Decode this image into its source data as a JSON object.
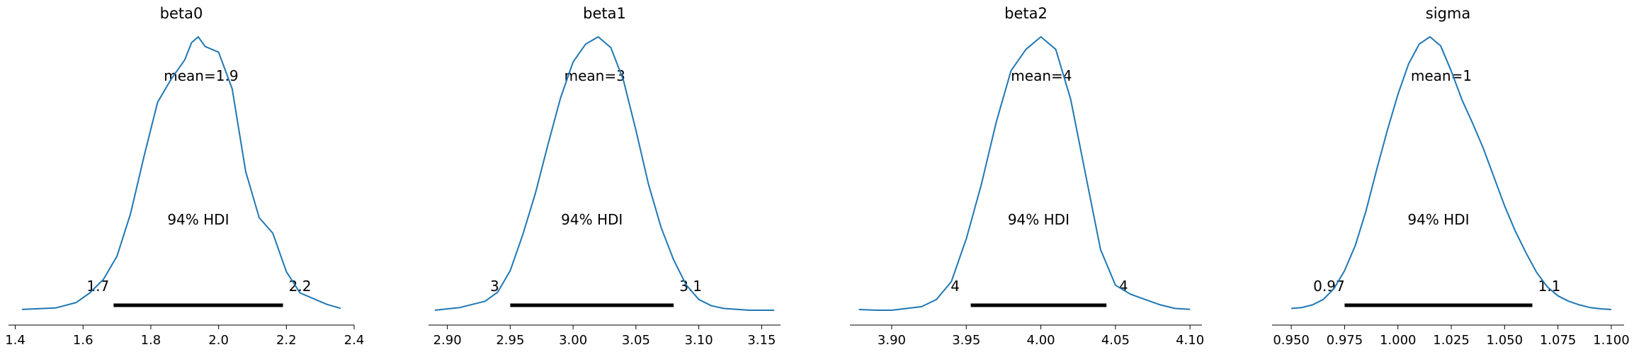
{
  "colors": {
    "line": "#1f77b4",
    "hdi_bar": "#000000",
    "axis": "#000000"
  },
  "chart_data": [
    {
      "type": "line",
      "title": "beta0",
      "mean_label": "mean=1.9",
      "hdi_label": "94% HDI",
      "hdi": [
        1.69,
        2.19
      ],
      "hdi_labels": [
        "1.7",
        "2.2"
      ],
      "xlim": [
        1.38,
        2.4
      ],
      "ticks": [
        1.4,
        1.6,
        1.8,
        2.0,
        2.2,
        2.4
      ],
      "tick_labels": [
        "1.4",
        "1.6",
        "1.8",
        "2.0",
        "2.2",
        "2.4"
      ],
      "density": {
        "x": [
          1.42,
          1.52,
          1.58,
          1.62,
          1.66,
          1.7,
          1.74,
          1.78,
          1.82,
          1.86,
          1.9,
          1.92,
          1.94,
          1.96,
          2.0,
          2.04,
          2.08,
          2.12,
          2.16,
          2.2,
          2.24,
          2.28,
          2.32,
          2.36
        ],
        "y": [
          0.004,
          0.012,
          0.04,
          0.09,
          0.16,
          0.28,
          0.5,
          0.8,
          1.08,
          1.2,
          1.3,
          1.39,
          1.42,
          1.37,
          1.34,
          1.15,
          0.72,
          0.48,
          0.4,
          0.2,
          0.09,
          0.06,
          0.03,
          0.01
        ]
      }
    },
    {
      "type": "line",
      "title": "beta1",
      "mean_label": "mean=3",
      "hdi_label": "94% HDI",
      "hdi": [
        2.95,
        3.08
      ],
      "hdi_labels": [
        "3",
        "3.1"
      ],
      "xlim": [
        2.885,
        3.165
      ],
      "ticks": [
        2.9,
        2.95,
        3.0,
        3.05,
        3.1,
        3.15
      ],
      "tick_labels": [
        "2.90",
        "2.95",
        "3.00",
        "3.05",
        "3.10",
        "3.15"
      ],
      "density": {
        "x": [
          2.89,
          2.91,
          2.93,
          2.94,
          2.95,
          2.96,
          2.97,
          2.98,
          2.99,
          3.0,
          3.01,
          3.02,
          3.03,
          3.04,
          3.05,
          3.06,
          3.07,
          3.08,
          3.09,
          3.1,
          3.11,
          3.12,
          3.14,
          3.16
        ],
        "y": [
          0.0,
          0.015,
          0.05,
          0.1,
          0.22,
          0.42,
          0.65,
          0.92,
          1.18,
          1.38,
          1.48,
          1.52,
          1.46,
          1.28,
          1.0,
          0.7,
          0.46,
          0.28,
          0.14,
          0.06,
          0.025,
          0.01,
          0.0,
          0.0
        ]
      }
    },
    {
      "type": "line",
      "title": "beta2",
      "mean_label": "mean=4",
      "hdi_label": "94% HDI",
      "hdi": [
        3.953,
        4.044
      ],
      "hdi_labels": [
        "4",
        "4"
      ],
      "xlim": [
        3.872,
        4.108
      ],
      "ticks": [
        3.9,
        3.95,
        4.0,
        4.05,
        4.1
      ],
      "tick_labels": [
        "3.90",
        "3.95",
        "4.00",
        "4.05",
        "4.10"
      ],
      "density": {
        "x": [
          3.878,
          3.89,
          3.9,
          3.91,
          3.92,
          3.93,
          3.94,
          3.95,
          3.96,
          3.97,
          3.98,
          3.99,
          4.0,
          4.01,
          4.02,
          4.03,
          4.04,
          4.05,
          4.06,
          4.07,
          4.08,
          4.09,
          4.1
        ],
        "y": [
          0.004,
          0.0,
          0.0,
          0.01,
          0.02,
          0.06,
          0.16,
          0.4,
          0.7,
          1.05,
          1.34,
          1.46,
          1.53,
          1.46,
          1.18,
          0.76,
          0.34,
          0.14,
          0.09,
          0.06,
          0.03,
          0.01,
          0.005
        ]
      }
    },
    {
      "type": "line",
      "title": "sigma",
      "mean_label": "mean=1",
      "hdi_label": "94% HDI",
      "hdi": [
        0.975,
        1.063
      ],
      "hdi_labels": [
        "0.97",
        "1.1"
      ],
      "xlim": [
        0.941,
        1.106
      ],
      "ticks": [
        0.95,
        0.975,
        1.0,
        1.025,
        1.05,
        1.075,
        1.1
      ],
      "tick_labels": [
        "0.950",
        "0.975",
        "1.000",
        "1.025",
        "1.050",
        "1.075",
        "1.100"
      ],
      "density": {
        "x": [
          0.95,
          0.955,
          0.96,
          0.965,
          0.97,
          0.975,
          0.98,
          0.985,
          0.99,
          0.995,
          1.0,
          1.005,
          1.01,
          1.015,
          1.02,
          1.025,
          1.03,
          1.035,
          1.04,
          1.045,
          1.05,
          1.055,
          1.06,
          1.065,
          1.07,
          1.075,
          1.08,
          1.085,
          1.09,
          1.095,
          1.1
        ],
        "y": [
          0.01,
          0.015,
          0.03,
          0.06,
          0.12,
          0.22,
          0.36,
          0.55,
          0.78,
          1.0,
          1.2,
          1.37,
          1.48,
          1.52,
          1.47,
          1.33,
          1.17,
          1.04,
          0.9,
          0.74,
          0.58,
          0.44,
          0.32,
          0.21,
          0.13,
          0.08,
          0.05,
          0.03,
          0.015,
          0.008,
          0.004
        ]
      }
    }
  ]
}
